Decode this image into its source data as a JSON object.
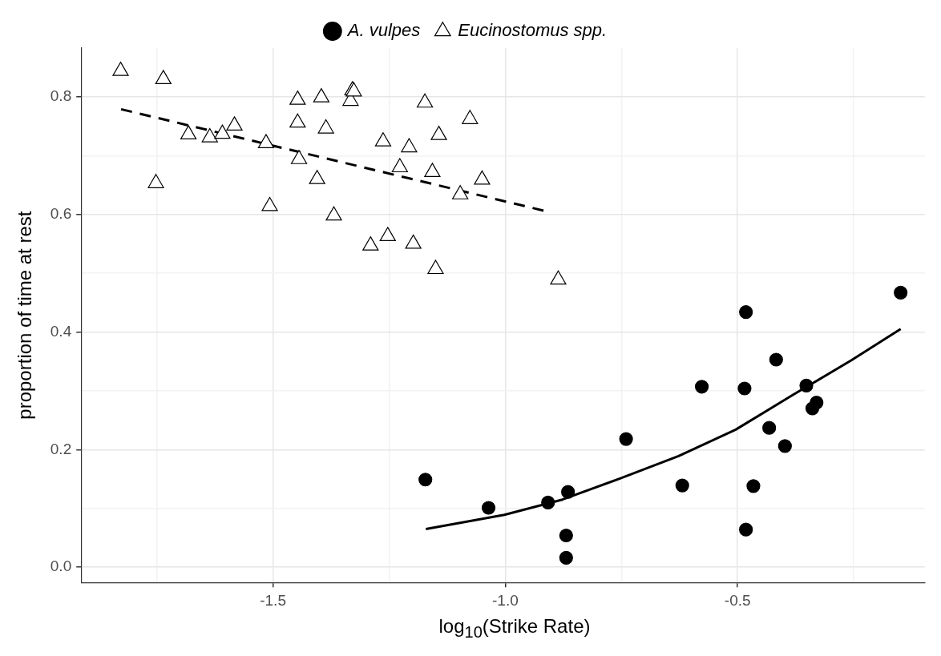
{
  "chart_data": {
    "type": "scatter",
    "xlabel": "log$_{10}$(Strike Rate)",
    "ylabel": "proportion of time at rest",
    "xlim": [
      -1.913,
      -0.097
    ],
    "ylim": [
      -0.026,
      0.883
    ],
    "xticks": [
      {
        "value": -1.75,
        "label": null
      },
      {
        "value": -1.5,
        "label": "-1.5"
      },
      {
        "value": -1.25,
        "label": null
      },
      {
        "value": -1.0,
        "label": "-1.0"
      },
      {
        "value": -0.75,
        "label": null
      },
      {
        "value": -0.5,
        "label": "-0.5"
      },
      {
        "value": -0.25,
        "label": null
      }
    ],
    "yticks": [
      {
        "value": 0.0,
        "label": "0.0"
      },
      {
        "value": 0.1,
        "label": null
      },
      {
        "value": 0.2,
        "label": "0.2"
      },
      {
        "value": 0.3,
        "label": null
      },
      {
        "value": 0.4,
        "label": "0.4"
      },
      {
        "value": 0.5,
        "label": null
      },
      {
        "value": 0.6,
        "label": "0.6"
      },
      {
        "value": 0.7,
        "label": null
      },
      {
        "value": 0.8,
        "label": "0.8"
      }
    ],
    "grid": true,
    "legend": "top",
    "series": [
      {
        "name": "A. vulpes",
        "marker": "circle",
        "color": "#000000",
        "x": [
          -1.172,
          -1.036,
          -0.908,
          -0.865,
          -0.869,
          -0.869,
          -0.74,
          -0.619,
          -0.577,
          -0.485,
          -0.482,
          -0.482,
          -0.466,
          -0.417,
          -0.432,
          -0.398,
          -0.352,
          -0.339,
          -0.33,
          -0.149
        ],
        "values": [
          0.149,
          0.101,
          0.11,
          0.128,
          0.054,
          0.016,
          0.218,
          0.139,
          0.307,
          0.304,
          0.434,
          0.064,
          0.138,
          0.353,
          0.237,
          0.206,
          0.309,
          0.27,
          0.28,
          0.467
        ]
      },
      {
        "name": "Eucinostomus spp.",
        "marker": "triangle",
        "color": "#000000",
        "x": [
          -1.828,
          -1.736,
          -1.682,
          -1.636,
          -1.609,
          -1.583,
          -1.752,
          -1.515,
          -1.507,
          -1.447,
          -1.447,
          -1.444,
          -1.396,
          -1.386,
          -1.405,
          -1.369,
          -1.329,
          -1.333,
          -1.326,
          -1.29,
          -1.263,
          -1.253,
          -1.207,
          -1.227,
          -1.198,
          -1.173,
          -1.143,
          -1.157,
          -1.15,
          -1.076,
          -1.097,
          -1.05,
          -0.886
        ],
        "values": [
          0.844,
          0.83,
          0.736,
          0.731,
          0.737,
          0.751,
          0.653,
          0.721,
          0.614,
          0.795,
          0.756,
          0.694,
          0.799,
          0.746,
          0.66,
          0.598,
          0.811,
          0.793,
          0.809,
          0.547,
          0.724,
          0.563,
          0.714,
          0.68,
          0.55,
          0.79,
          0.735,
          0.672,
          0.507,
          0.762,
          0.634,
          0.659,
          0.489
        ]
      },
      {
        "type": "line",
        "marker": "none",
        "line_style": "solid",
        "color": "#000000",
        "x": [
          -1.171,
          -1.002,
          -0.877,
          -0.753,
          -0.627,
          -0.504,
          -0.381,
          -0.255,
          -0.149
        ],
        "values": [
          0.065,
          0.089,
          0.115,
          0.151,
          0.189,
          0.234,
          0.293,
          0.352,
          0.405
        ]
      },
      {
        "type": "line",
        "marker": "none",
        "line_style": "dashed",
        "color": "#000000",
        "x": [
          -1.827,
          -0.915
        ],
        "values": [
          0.779,
          0.606
        ]
      }
    ]
  }
}
